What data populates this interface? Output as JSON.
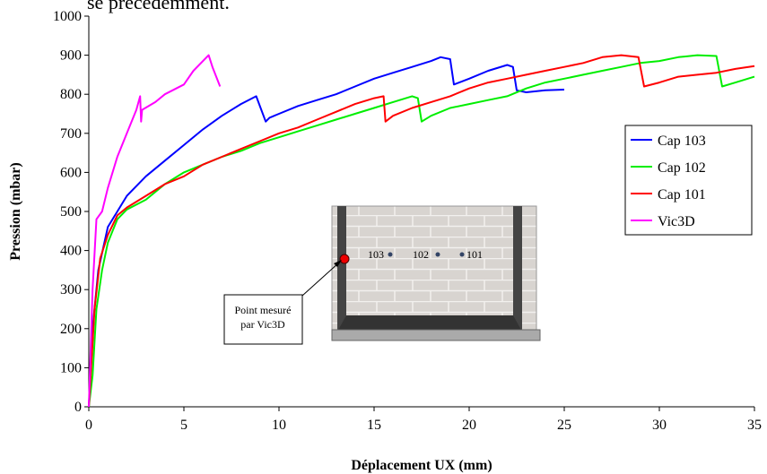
{
  "page_text": "se précédemment.",
  "chart_data": {
    "type": "line",
    "x_label": "Déplacement UX (mm)",
    "y_label": "Pression (mbar)",
    "xlim": [
      0,
      35
    ],
    "xticks": [
      0,
      5,
      10,
      15,
      20,
      25,
      30,
      35
    ],
    "ylim": [
      0,
      1000
    ],
    "yticks": [
      0,
      100,
      200,
      300,
      400,
      500,
      600,
      700,
      800,
      900,
      1000
    ],
    "grid": false,
    "legend": "right",
    "series": [
      {
        "name": "Cap 103",
        "color": "#0000ff",
        "x": [
          0,
          0.2,
          0.5,
          1,
          1.5,
          2,
          3,
          4,
          5,
          6,
          7,
          8,
          8.8,
          9.3,
          9.5,
          10,
          11,
          12,
          13,
          14,
          15,
          16,
          17,
          18,
          18.5,
          19,
          19.2,
          20,
          21,
          22,
          22.3,
          22.5,
          23,
          24,
          25
        ],
        "values": [
          0,
          200,
          350,
          460,
          500,
          540,
          590,
          630,
          670,
          710,
          745,
          775,
          795,
          730,
          740,
          750,
          770,
          785,
          800,
          820,
          840,
          855,
          870,
          885,
          895,
          890,
          825,
          840,
          860,
          875,
          870,
          810,
          805,
          810,
          812
        ]
      },
      {
        "name": "Cap 102",
        "color": "#00ee00",
        "x": [
          0,
          0.2,
          0.4,
          0.7,
          1,
          1.5,
          2,
          3,
          4,
          5,
          6,
          7,
          8,
          9,
          10,
          11,
          12,
          13,
          14,
          15,
          16,
          17,
          17.3,
          17.5,
          18,
          19,
          20,
          21,
          22,
          23,
          24,
          25,
          26,
          27,
          28,
          29,
          30,
          31,
          32,
          33,
          33.3,
          34,
          35
        ],
        "values": [
          0,
          80,
          250,
          350,
          420,
          480,
          505,
          530,
          570,
          600,
          620,
          640,
          655,
          675,
          690,
          705,
          720,
          735,
          750,
          765,
          780,
          795,
          790,
          730,
          745,
          765,
          775,
          785,
          795,
          815,
          830,
          840,
          850,
          860,
          870,
          880,
          885,
          895,
          900,
          898,
          820,
          830,
          845
        ]
      },
      {
        "name": "Cap 101",
        "color": "#ff0000",
        "x": [
          0,
          0.3,
          0.6,
          1,
          1.5,
          2,
          3,
          4,
          5,
          6,
          7,
          8,
          9,
          10,
          11,
          12,
          13,
          14,
          15,
          15.5,
          15.6,
          16,
          17,
          18,
          19,
          20,
          21,
          22,
          23,
          24,
          25,
          26,
          27,
          28,
          28.9,
          29.2,
          30,
          31,
          32,
          33,
          34,
          35
        ],
        "values": [
          0,
          250,
          380,
          440,
          490,
          510,
          540,
          570,
          590,
          620,
          640,
          660,
          680,
          700,
          715,
          735,
          755,
          775,
          790,
          795,
          730,
          745,
          765,
          780,
          795,
          815,
          830,
          840,
          850,
          860,
          870,
          880,
          895,
          900,
          895,
          820,
          830,
          845,
          850,
          855,
          865,
          872
        ]
      },
      {
        "name": "Vic3D",
        "color": "#ff00ff",
        "x": [
          0,
          0.2,
          0.4,
          0.7,
          1,
          1.5,
          2,
          2.5,
          2.7,
          2.75,
          2.8,
          3.5,
          4,
          5,
          5.5,
          6.3,
          6.5,
          6.9
        ],
        "values": [
          0,
          300,
          480,
          500,
          560,
          640,
          700,
          760,
          795,
          730,
          760,
          780,
          800,
          825,
          860,
          900,
          870,
          820
        ]
      }
    ],
    "annotations": {
      "sensors": [
        "103",
        "102",
        "101"
      ],
      "callout": [
        "Point mesuré",
        "par Vic3D"
      ]
    }
  }
}
